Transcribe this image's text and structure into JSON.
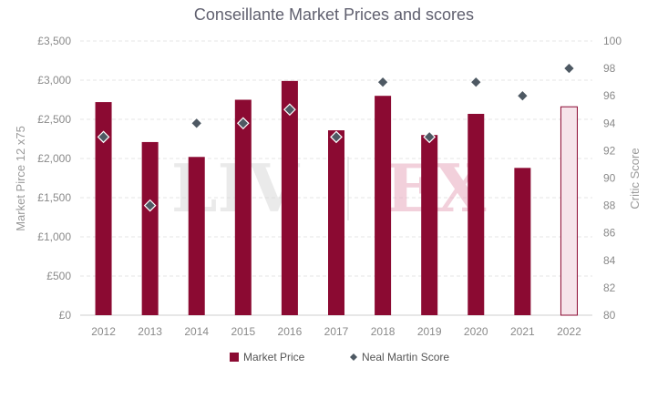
{
  "chart_data": {
    "type": "bar",
    "title": "Conseillante Market Prices and scores",
    "categories": [
      "2012",
      "2013",
      "2014",
      "2015",
      "2016",
      "2017",
      "2018",
      "2019",
      "2020",
      "2021",
      "2022"
    ],
    "series": [
      {
        "name": "Market Price",
        "kind": "bar",
        "axis": "left",
        "color": "#8b0a32",
        "values": [
          2720,
          2210,
          2020,
          2750,
          2990,
          2360,
          2800,
          2300,
          2570,
          1880,
          2660
        ],
        "highlight_last": {
          "fill": "#f6e4ea",
          "stroke": "#8b0a32"
        }
      },
      {
        "name": "Neal Martin Score",
        "kind": "scatter",
        "axis": "right",
        "color": "#4e5963",
        "values": [
          93,
          88,
          94,
          94,
          95,
          93,
          97,
          93,
          97,
          96,
          98
        ]
      }
    ],
    "ylabel": "Market Pirce 12 x75",
    "y2label": "Critic Score",
    "ylim": [
      0,
      3500
    ],
    "y2lim": [
      80,
      100
    ],
    "yticks": [
      0,
      500,
      1000,
      1500,
      2000,
      2500,
      3000,
      3500
    ],
    "yticklabels": [
      "£0",
      "£500",
      "£1,000",
      "£1,500",
      "£2,000",
      "£2,500",
      "£3,000",
      "£3,500"
    ],
    "y2ticks": [
      80,
      82,
      84,
      86,
      88,
      90,
      92,
      94,
      96,
      98,
      100
    ],
    "y2ticklabels": [
      "80",
      "82",
      "84",
      "86",
      "88",
      "90",
      "92",
      "94",
      "96",
      "98",
      "100"
    ],
    "grid": true,
    "legend_position": "bottom",
    "legend": [
      {
        "label": "Market Price",
        "marker": "square",
        "color": "#8b0a32"
      },
      {
        "label": "Neal Martin Score",
        "marker": "diamond",
        "color": "#4e5963"
      }
    ]
  },
  "watermark": {
    "left": "LIV",
    "right": "EX"
  }
}
